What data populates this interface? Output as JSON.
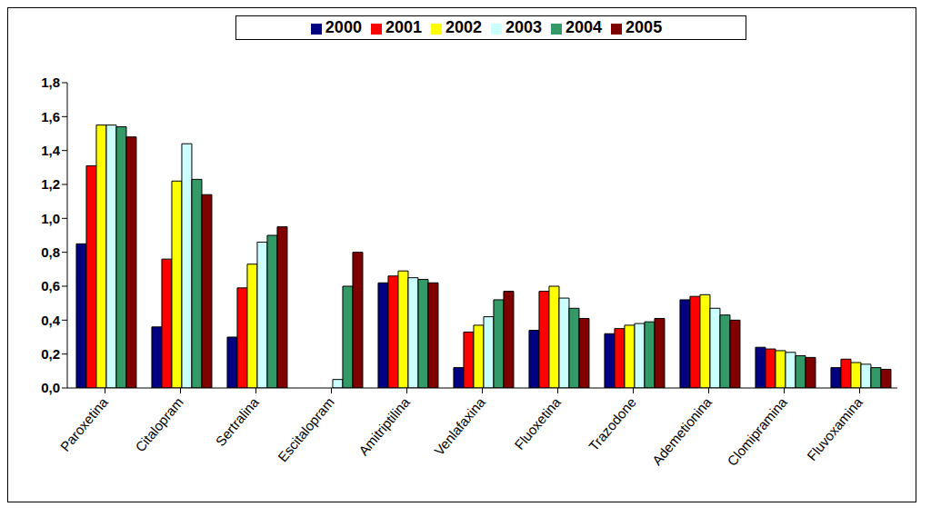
{
  "chart_data": {
    "type": "bar",
    "categories": [
      "Paroxetina",
      "Citalopram",
      "Sertralina",
      "Escitalopram",
      "Amitriptilina",
      "Venlafaxina",
      "Fluoxetina",
      "Trazodone",
      "Ademetionina",
      "Clomipramina",
      "Fluvoxamina"
    ],
    "series": [
      {
        "name": "2000",
        "color": "#000080",
        "values": [
          0.85,
          0.36,
          0.3,
          null,
          0.62,
          0.12,
          0.34,
          0.32,
          0.52,
          0.24,
          0.12
        ]
      },
      {
        "name": "2001",
        "color": "#ff0000",
        "values": [
          1.31,
          0.76,
          0.59,
          null,
          0.66,
          0.33,
          0.57,
          0.35,
          0.54,
          0.23,
          0.17
        ]
      },
      {
        "name": "2002",
        "color": "#ffff00",
        "values": [
          1.55,
          1.22,
          0.73,
          null,
          0.69,
          0.37,
          0.6,
          0.37,
          0.55,
          0.22,
          0.15
        ]
      },
      {
        "name": "2003",
        "color": "#ccffff",
        "values": [
          1.55,
          1.44,
          0.86,
          0.05,
          0.65,
          0.42,
          0.53,
          0.38,
          0.47,
          0.21,
          0.14
        ]
      },
      {
        "name": "2004",
        "color": "#339966",
        "values": [
          1.54,
          1.23,
          0.9,
          0.6,
          0.64,
          0.52,
          0.47,
          0.39,
          0.43,
          0.19,
          0.12
        ]
      },
      {
        "name": "2005",
        "color": "#800000",
        "values": [
          1.48,
          1.14,
          0.95,
          0.8,
          0.62,
          0.57,
          0.41,
          0.41,
          0.4,
          0.18,
          0.11
        ]
      }
    ],
    "ylim": [
      0,
      1.8
    ],
    "yticks": [
      {
        "value": 0,
        "label": "0,0"
      },
      {
        "value": 0.2,
        "label": "0,2"
      },
      {
        "value": 0.4,
        "label": "0,4"
      },
      {
        "value": 0.6,
        "label": "0,6"
      },
      {
        "value": 0.8,
        "label": "0,8"
      },
      {
        "value": 1.0,
        "label": "1,0"
      },
      {
        "value": 1.2,
        "label": "1,2"
      },
      {
        "value": 1.4,
        "label": "1,4"
      },
      {
        "value": 1.6,
        "label": "1,6"
      },
      {
        "value": 1.8,
        "label": "1,8"
      }
    ],
    "grid": false,
    "legend": "top"
  }
}
